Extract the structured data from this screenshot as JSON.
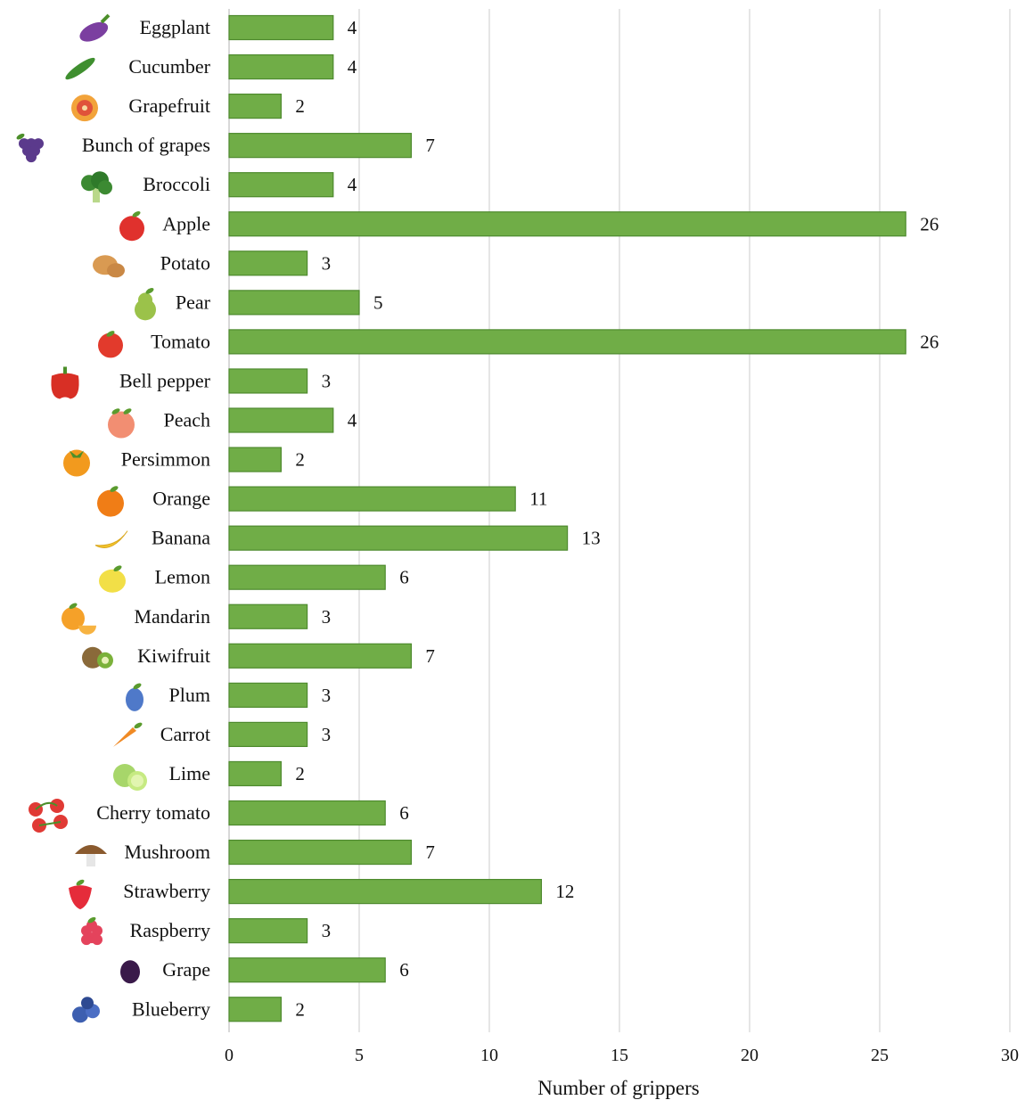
{
  "colors": {
    "bar": "#70ad47",
    "bar_stroke": "#4e8a2e",
    "grid": "#d4d4d4"
  },
  "chart_data": {
    "type": "bar",
    "orientation": "horizontal",
    "title": "",
    "xlabel": "Number of grippers",
    "ylabel": "",
    "xlim": [
      0,
      30
    ],
    "xticks": [
      0,
      5,
      10,
      15,
      20,
      25,
      30
    ],
    "grid": "vertical",
    "categories": [
      "Eggplant",
      "Cucumber",
      "Grapefruit",
      "Bunch of grapes",
      "Broccoli",
      "Apple",
      "Potato",
      "Pear",
      "Tomato",
      "Bell pepper",
      "Peach",
      "Persimmon",
      "Orange",
      "Banana",
      "Lemon",
      "Mandarin",
      "Kiwifruit",
      "Plum",
      "Carrot",
      "Lime",
      "Cherry tomato",
      "Mushroom",
      "Strawberry",
      "Raspberry",
      "Grape",
      "Blueberry"
    ],
    "icons": [
      "eggplant-icon",
      "cucumber-icon",
      "grapefruit-icon",
      "grapes-bunch-icon",
      "broccoli-icon",
      "apple-icon",
      "potato-icon",
      "pear-icon",
      "tomato-icon",
      "bell-pepper-icon",
      "peach-icon",
      "persimmon-icon",
      "orange-icon",
      "banana-icon",
      "lemon-icon",
      "mandarin-icon",
      "kiwifruit-icon",
      "plum-icon",
      "carrot-icon",
      "lime-icon",
      "cherry-tomato-icon",
      "mushroom-icon",
      "strawberry-icon",
      "raspberry-icon",
      "grape-icon",
      "blueberry-icon"
    ],
    "values": [
      4,
      4,
      2,
      7,
      4,
      26,
      3,
      5,
      26,
      3,
      4,
      2,
      11,
      13,
      6,
      3,
      7,
      3,
      3,
      2,
      6,
      7,
      12,
      3,
      6,
      2
    ]
  }
}
